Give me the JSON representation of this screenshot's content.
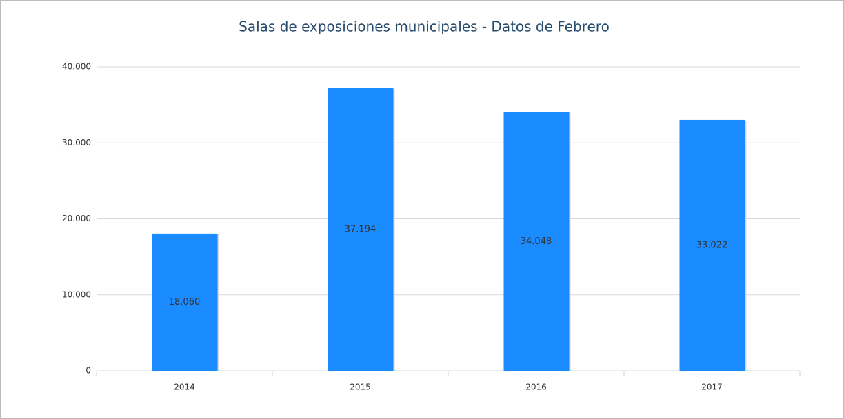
{
  "chart_data": {
    "type": "bar",
    "title": "Salas de exposiciones municipales - Datos de Febrero",
    "categories": [
      "2014",
      "2015",
      "2016",
      "2017"
    ],
    "values": [
      18060,
      37194,
      34048,
      33022
    ],
    "value_labels": [
      "18.060",
      "37.194",
      "34.048",
      "33.022"
    ],
    "color": "#1a8cff",
    "ylim": [
      0,
      40000
    ],
    "yticks": [
      0,
      {
        "value": 10000,
        "label": "10.000"
      },
      {
        "value": 20000,
        "label": "20.000"
      },
      {
        "value": 30000,
        "label": "30.000"
      },
      {
        "value": 40000,
        "label": "40.000"
      }
    ],
    "grid": true
  }
}
